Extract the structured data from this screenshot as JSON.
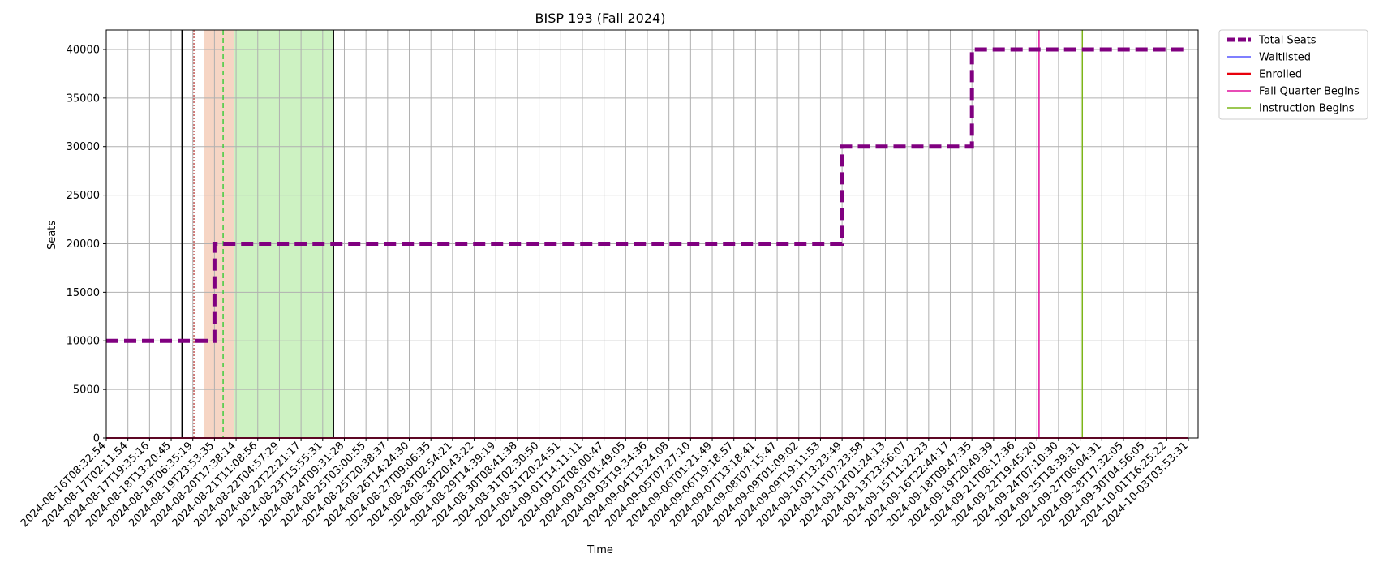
{
  "chart_data": {
    "type": "line",
    "title": "BISP 193 (Fall 2024)",
    "xlabel": "Time",
    "ylabel": "Seats",
    "ylim": [
      0,
      42000
    ],
    "yticks": [
      0,
      5000,
      10000,
      15000,
      20000,
      25000,
      30000,
      35000,
      40000
    ],
    "grid": true,
    "legend_position": "outside-top-right",
    "x_tick_labels": [
      "2024-08-16T08:32:54",
      "2024-08-17T02:11:54",
      "2024-08-17T19:35:16",
      "2024-08-18T13:20:45",
      "2024-08-19T06:35:19",
      "2024-08-19T23:53:35",
      "2024-08-20T17:38:14",
      "2024-08-21T11:08:56",
      "2024-08-22T04:57:29",
      "2024-08-22T22:21:17",
      "2024-08-23T15:55:31",
      "2024-08-24T09:31:28",
      "2024-08-25T03:00:55",
      "2024-08-25T20:38:37",
      "2024-08-26T14:24:30",
      "2024-08-27T09:06:35",
      "2024-08-28T02:54:21",
      "2024-08-28T20:43:22",
      "2024-08-29T14:39:19",
      "2024-08-30T08:41:38",
      "2024-08-31T02:30:50",
      "2024-08-31T20:24:51",
      "2024-09-01T14:11:11",
      "2024-09-02T08:00:47",
      "2024-09-03T01:49:05",
      "2024-09-03T19:34:36",
      "2024-09-04T13:24:08",
      "2024-09-05T07:27:10",
      "2024-09-06T01:21:49",
      "2024-09-06T19:18:57",
      "2024-09-07T13:18:41",
      "2024-09-08T07:15:47",
      "2024-09-09T01:09:02",
      "2024-09-09T19:11:53",
      "2024-09-10T13:23:49",
      "2024-09-11T07:23:58",
      "2024-09-12T01:24:13",
      "2024-09-13T23:56:07",
      "2024-09-15T11:22:23",
      "2024-09-16T22:44:17",
      "2024-09-18T09:47:35",
      "2024-09-19T20:49:39",
      "2024-09-21T08:17:36",
      "2024-09-22T19:45:20",
      "2024-09-24T07:10:30",
      "2024-09-25T18:39:31",
      "2024-09-27T06:04:31",
      "2024-09-28T17:32:05",
      "2024-09-30T04:56:05",
      "2024-10-01T16:25:22",
      "2024-10-03T03:53:31"
    ],
    "series": [
      {
        "name": "Total Seats",
        "color": "#800080",
        "style": "dashed",
        "points": [
          {
            "x": "2024-08-16T08:32:54",
            "y": 10000
          },
          {
            "x": "2024-08-19T23:53:35",
            "y": 10000
          },
          {
            "x": "2024-08-19T23:53:35",
            "y": 20000
          },
          {
            "x": "2024-09-10T13:23:49",
            "y": 20000
          },
          {
            "x": "2024-09-10T13:23:49",
            "y": 30000
          },
          {
            "x": "2024-09-18T09:47:35",
            "y": 30000
          },
          {
            "x": "2024-09-18T09:47:35",
            "y": 40000
          },
          {
            "x": "2024-10-03T03:53:31",
            "y": 40000
          }
        ]
      },
      {
        "name": "Waitlisted",
        "color": "#3333ff",
        "style": "solid",
        "points": [
          {
            "x": "2024-08-16T08:32:54",
            "y": 0
          },
          {
            "x": "2024-10-03T03:53:31",
            "y": 0
          }
        ]
      },
      {
        "name": "Enrolled",
        "color": "#e8000b",
        "style": "solid",
        "points": [
          {
            "x": "2024-08-16T08:32:54",
            "y": 0
          },
          {
            "x": "2024-10-03T03:53:31",
            "y": 0
          }
        ]
      }
    ],
    "markers": [
      {
        "name": "Fall Quarter Begins",
        "color": "#e0119d",
        "x_tick_index": 43.1
      },
      {
        "name": "Instruction Begins",
        "color": "#7cb518",
        "x_tick_index": 45.1
      }
    ],
    "shaded_regions": [
      {
        "color": "#f6d5c4",
        "from_tick_index": 4.5,
        "to_tick_index": 5.9
      },
      {
        "color": "#cdf2c2",
        "from_tick_index": 5.9,
        "to_tick_index": 10.5
      }
    ],
    "extra_vlines": [
      {
        "color": "#000000",
        "style": "solid",
        "x_tick_index": 3.5
      },
      {
        "color": "#000000",
        "style": "solid",
        "x_tick_index": 10.5
      },
      {
        "color": "#c0504d",
        "style": "dotted",
        "x_tick_index": 4.05
      },
      {
        "color": "#33cc33",
        "style": "dashed",
        "x_tick_index": 5.4
      }
    ],
    "legend": [
      "Total Seats",
      "Waitlisted",
      "Enrolled",
      "Fall Quarter Begins",
      "Instruction Begins"
    ]
  }
}
